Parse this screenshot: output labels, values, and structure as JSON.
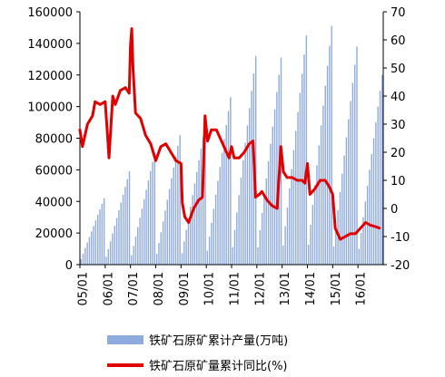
{
  "chart_data": {
    "type": "bar+line",
    "title": "",
    "x_tick_labels": [
      "05/01",
      "06/01",
      "07/01",
      "08/01",
      "09/01",
      "10/01",
      "11/01",
      "12/01",
      "13/01",
      "14/01",
      "15/01",
      "16/01"
    ],
    "left_axis": {
      "range": [
        0,
        160000
      ],
      "ticks": [
        "0",
        "20000",
        "40000",
        "60000",
        "80000",
        "100000",
        "120000",
        "140000",
        "160000"
      ]
    },
    "right_axis": {
      "range": [
        -20,
        70
      ],
      "ticks": [
        "-20",
        "-10",
        "0",
        "10",
        "20",
        "30",
        "40",
        "50",
        "60",
        "70"
      ]
    },
    "series": [
      {
        "name": "铁矿石原矿累计产量(万吨)",
        "type": "bar",
        "axis": "left",
        "color": "#8FAADC",
        "year_end_values": [
          42000,
          59000,
          71000,
          82000,
          88000,
          106000,
          132000,
          131000,
          145000,
          151000,
          138000,
          120000
        ]
      },
      {
        "name": "铁矿石原矿量累计同比(%)",
        "type": "line",
        "axis": "right",
        "color": "#E00000",
        "points": [
          [
            0.0,
            28
          ],
          [
            0.1,
            22
          ],
          [
            0.3,
            30
          ],
          [
            0.5,
            33
          ],
          [
            0.6,
            38
          ],
          [
            0.8,
            37
          ],
          [
            1.0,
            38
          ],
          [
            1.1,
            25
          ],
          [
            1.15,
            18
          ],
          [
            1.3,
            40
          ],
          [
            1.4,
            37
          ],
          [
            1.6,
            42
          ],
          [
            1.8,
            43
          ],
          [
            1.95,
            41
          ],
          [
            2.0,
            58
          ],
          [
            2.05,
            64
          ],
          [
            2.1,
            50
          ],
          [
            2.2,
            34
          ],
          [
            2.4,
            32
          ],
          [
            2.6,
            26
          ],
          [
            2.8,
            23
          ],
          [
            3.0,
            17
          ],
          [
            3.2,
            22
          ],
          [
            3.4,
            23
          ],
          [
            3.6,
            20
          ],
          [
            3.8,
            17
          ],
          [
            4.0,
            16
          ],
          [
            4.05,
            2
          ],
          [
            4.15,
            -3
          ],
          [
            4.3,
            -5
          ],
          [
            4.5,
            0
          ],
          [
            4.7,
            3
          ],
          [
            4.85,
            4
          ],
          [
            4.95,
            33
          ],
          [
            5.05,
            24
          ],
          [
            5.2,
            28
          ],
          [
            5.4,
            28
          ],
          [
            5.6,
            24
          ],
          [
            5.8,
            20
          ],
          [
            5.9,
            18
          ],
          [
            6.0,
            22
          ],
          [
            6.1,
            18
          ],
          [
            6.3,
            18
          ],
          [
            6.5,
            20
          ],
          [
            6.7,
            23
          ],
          [
            6.85,
            24
          ],
          [
            6.95,
            4
          ],
          [
            7.1,
            5
          ],
          [
            7.2,
            6
          ],
          [
            7.4,
            3
          ],
          [
            7.6,
            1
          ],
          [
            7.8,
            0
          ],
          [
            7.95,
            22
          ],
          [
            8.05,
            13
          ],
          [
            8.2,
            11
          ],
          [
            8.4,
            11
          ],
          [
            8.6,
            10
          ],
          [
            8.8,
            10
          ],
          [
            8.9,
            9
          ],
          [
            9.0,
            16
          ],
          [
            9.1,
            5
          ],
          [
            9.3,
            7
          ],
          [
            9.5,
            10
          ],
          [
            9.7,
            10
          ],
          [
            9.85,
            8
          ],
          [
            10.0,
            5
          ],
          [
            10.1,
            -7
          ],
          [
            10.3,
            -11
          ],
          [
            10.5,
            -10
          ],
          [
            10.7,
            -9
          ],
          [
            10.9,
            -9
          ],
          [
            11.1,
            -7
          ],
          [
            11.3,
            -5
          ],
          [
            11.5,
            -6
          ],
          [
            11.7,
            -6.5
          ],
          [
            11.85,
            -7
          ]
        ]
      }
    ],
    "legend_placement": "bottom"
  }
}
